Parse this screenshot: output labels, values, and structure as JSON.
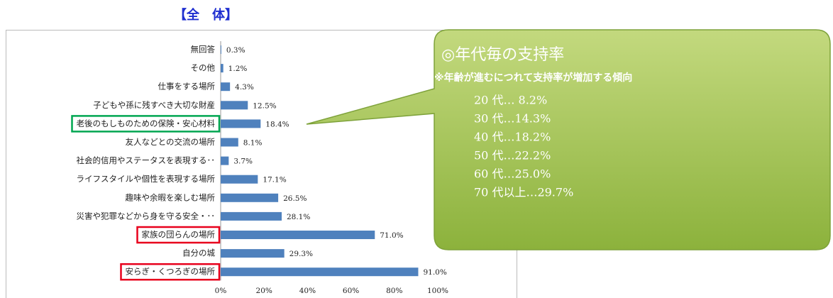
{
  "chart_data": {
    "type": "bar",
    "orientation": "horizontal",
    "title": "【全　体】",
    "categories": [
      "無回答",
      "その他",
      "仕事をする場所",
      "子どもや孫に残すべき大切な財産",
      "老後のもしものための保険・安心材料",
      "友人などとの交流の場所",
      "社会的信用やステータスを表現する･･",
      "ライフスタイルや個性を表現する場所",
      "趣味や余暇を楽しむ場所",
      "災害や犯罪などから身を守る安全・･･",
      "家族の団らんの場所",
      "自分の城",
      "安らぎ・くつろぎの場所"
    ],
    "values": [
      0.3,
      1.2,
      4.3,
      12.5,
      18.4,
      8.1,
      3.7,
      17.1,
      26.5,
      28.1,
      71.0,
      29.3,
      91.0
    ],
    "value_labels": [
      "0.3%",
      "1.2%",
      "4.3%",
      "12.5%",
      "18.4%",
      "8.1%",
      "3.7%",
      "17.1%",
      "26.5%",
      "28.1%",
      "71.0%",
      "29.3%",
      "91.0%"
    ],
    "color": "#4f81bd",
    "xlim": [
      0,
      100
    ],
    "xticks": [
      {
        "value": 0,
        "label": "0%"
      },
      {
        "value": 20,
        "label": "20%"
      },
      {
        "value": 40,
        "label": "40%"
      },
      {
        "value": 60,
        "label": "60%"
      },
      {
        "value": 80,
        "label": "80%"
      },
      {
        "value": 100,
        "label": "100%"
      }
    ],
    "highlights": [
      {
        "index": 4,
        "color": "#00a651"
      },
      {
        "index": 10,
        "color": "#e8001c"
      },
      {
        "index": 12,
        "color": "#e8001c"
      }
    ],
    "callout": {
      "heading": "◎年代毎の支持率",
      "note": "※年齢が進むにつれて支持率が増加する傾向",
      "lines": [
        "20 代…  8.2%",
        "30 代…14.3%",
        "40 代…18.2%",
        "50 代…22.2%",
        "60 代…25.0%",
        "70 代以上…29.7%"
      ]
    }
  }
}
